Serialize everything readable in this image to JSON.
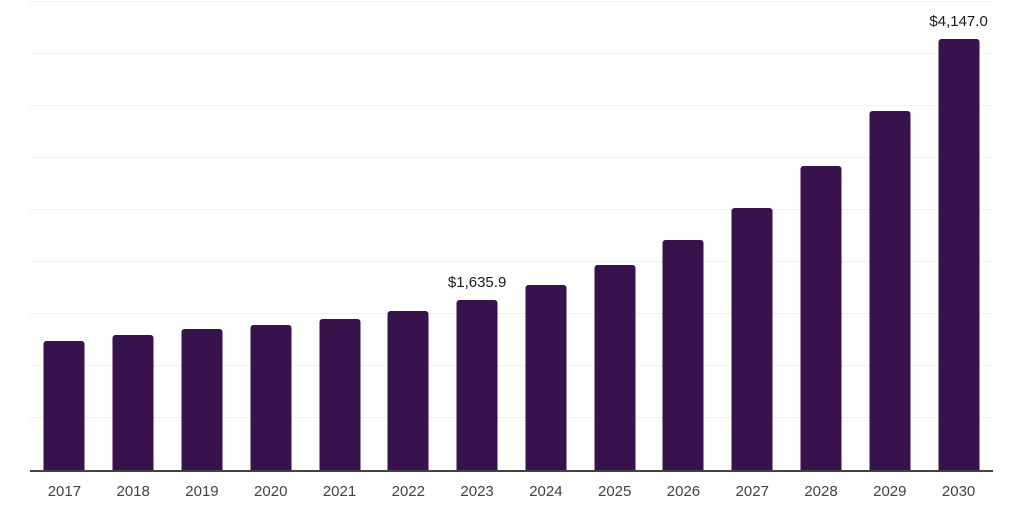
{
  "chart_data": {
    "type": "bar",
    "title": "",
    "categories": [
      "2017",
      "2018",
      "2019",
      "2020",
      "2021",
      "2022",
      "2023",
      "2024",
      "2025",
      "2026",
      "2027",
      "2028",
      "2029",
      "2030"
    ],
    "values": [
      1243,
      1301,
      1353,
      1397,
      1452,
      1526,
      1635.9,
      1782,
      1971,
      2212,
      2519,
      2923,
      3449,
      4147.0
    ],
    "data_labels": [
      "",
      "",
      "",
      "",
      "",
      "",
      "$1,635.9",
      "",
      "",
      "",
      "",
      "",
      "",
      "$4,147.0"
    ],
    "ylim": [
      0,
      4500
    ],
    "gridline_interval": 500,
    "grid": true,
    "legend_position": "none",
    "xlabel": "",
    "ylabel": "",
    "colors": {
      "bar": "#37124D",
      "gridline": "#f0f0f0",
      "axis_line": "#424242",
      "data_label_text": "#1a1a1a",
      "tick_label_text": "#424242",
      "background": "#ffffff"
    }
  }
}
